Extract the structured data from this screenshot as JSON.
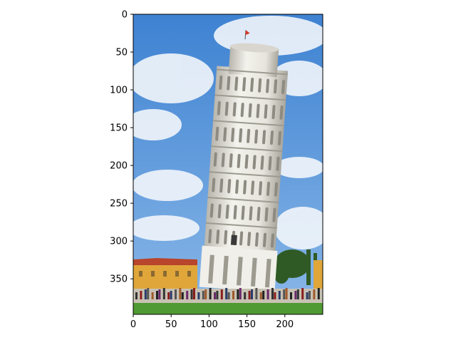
{
  "axes": {
    "x": {
      "range": [
        0,
        250
      ],
      "ticks": [
        0,
        50,
        100,
        150,
        200
      ]
    },
    "y": {
      "range": [
        0,
        397
      ],
      "inverted": true,
      "ticks": [
        0,
        50,
        100,
        150,
        200,
        250,
        300,
        350
      ]
    }
  },
  "image": {
    "subject": "leaning-tower-photo",
    "sky_color": "#4a8fd8",
    "cloud_color": "#f2f6fb",
    "tower_color": "#ecebe4",
    "building_color": "#e0a63a",
    "roof_color": "#b8452c",
    "lawn_color": "#4f9a32",
    "tree_color": "#2f5a25",
    "plaza_color": "#c8c2b4"
  }
}
